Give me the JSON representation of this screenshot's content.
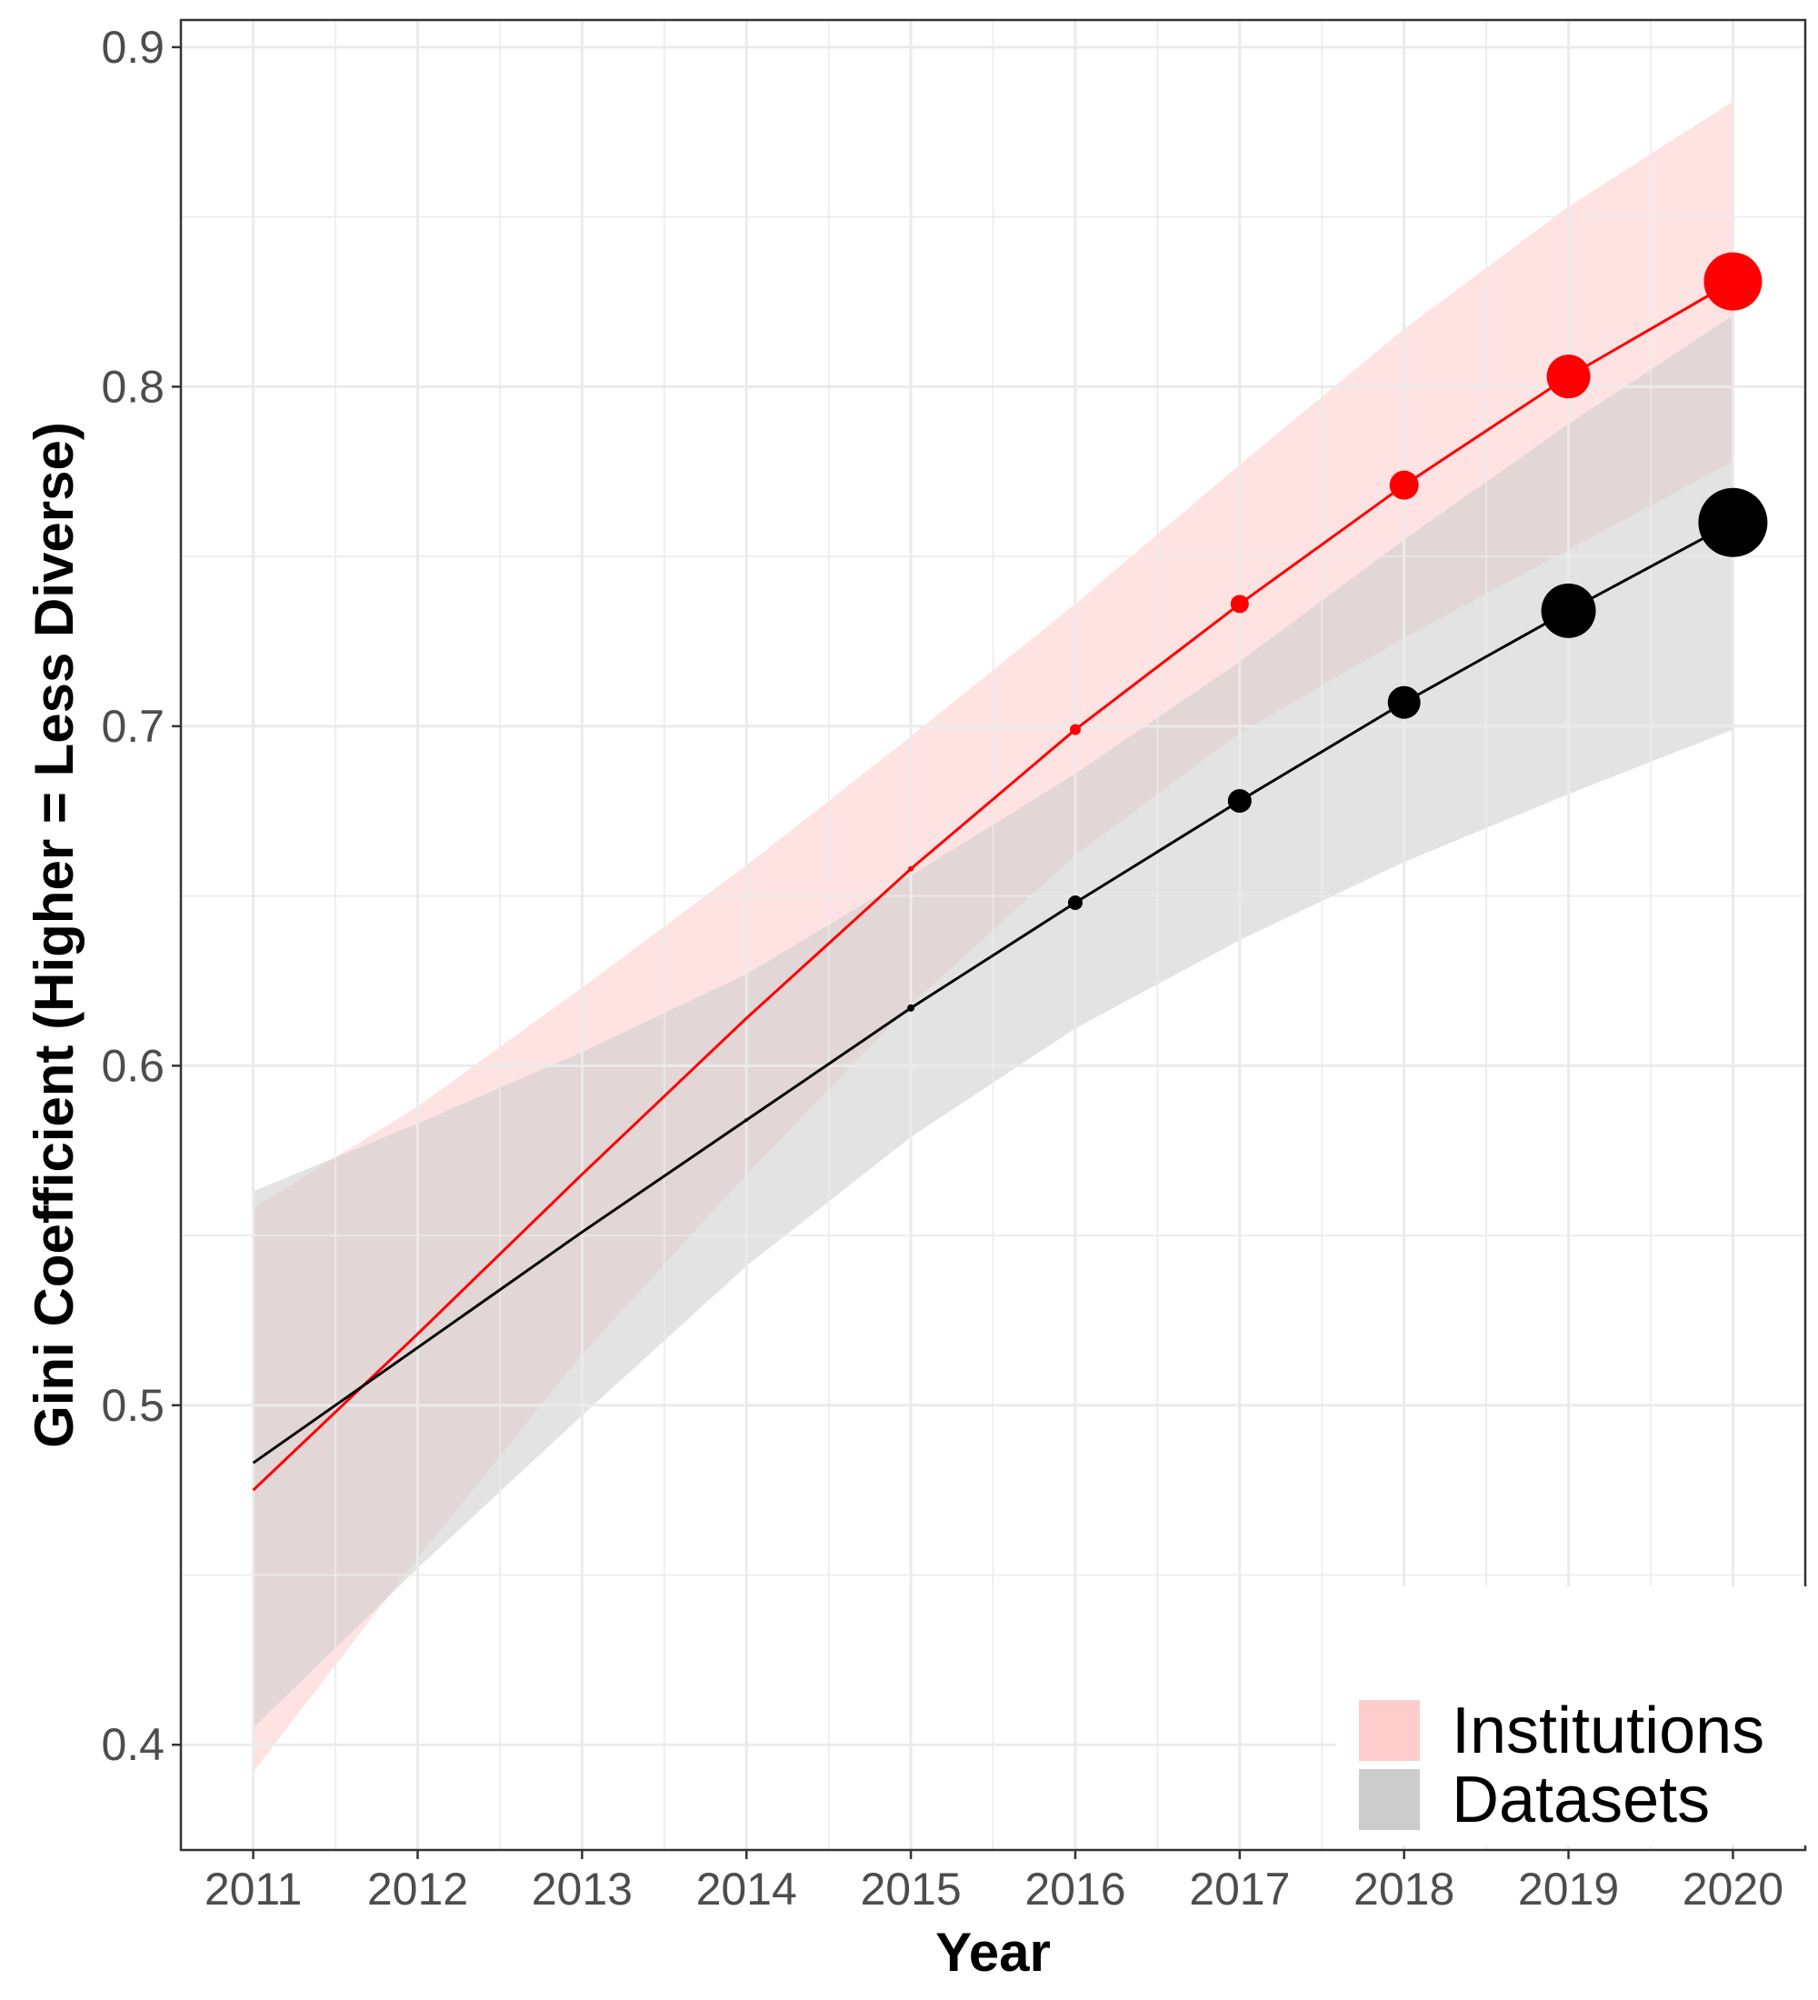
{
  "chart_data": {
    "type": "line",
    "title": "",
    "xlabel": "Year",
    "ylabel": "Gini Coefficient (Higher = Less Diverse)",
    "x": [
      2011,
      2012,
      2013,
      2014,
      2015,
      2016,
      2017,
      2018,
      2019,
      2020
    ],
    "xlim": [
      2010.56,
      2020.44
    ],
    "ylim": [
      0.369,
      0.908
    ],
    "y_ticks": [
      0.4,
      0.5,
      0.6,
      0.7,
      0.8,
      0.9
    ],
    "y_tick_labels": [
      "0.4",
      "0.5",
      "0.6",
      "0.7",
      "0.8",
      "0.9"
    ],
    "x_tick_labels": [
      "2011",
      "2012",
      "2013",
      "2014",
      "2015",
      "2016",
      "2017",
      "2018",
      "2019",
      "2020"
    ],
    "grid": true,
    "legend_position": "bottom-right",
    "series": [
      {
        "name": "Institutions",
        "color": "#ff0000",
        "band_color": "#ffcccc",
        "values": [
          0.475,
          0.521,
          0.568,
          0.614,
          0.658,
          0.699,
          0.736,
          0.771,
          0.803,
          0.831
        ],
        "lower": [
          0.392,
          0.455,
          0.515,
          0.568,
          0.618,
          0.662,
          0.698,
          0.726,
          0.752,
          0.778
        ],
        "upper": [
          0.558,
          0.588,
          0.623,
          0.659,
          0.697,
          0.736,
          0.777,
          0.817,
          0.853,
          0.884
        ],
        "point_sizes": [
          0,
          0,
          0,
          0,
          3,
          6,
          10,
          16,
          24,
          32
        ]
      },
      {
        "name": "Datasets",
        "color": "#000000",
        "band_color": "#cccccc",
        "values": [
          0.483,
          0.517,
          0.551,
          0.584,
          0.617,
          0.648,
          0.678,
          0.707,
          0.734,
          0.76
        ],
        "lower": [
          0.405,
          0.452,
          0.497,
          0.541,
          0.579,
          0.611,
          0.637,
          0.66,
          0.68,
          0.699
        ],
        "upper": [
          0.563,
          0.583,
          0.604,
          0.627,
          0.656,
          0.686,
          0.719,
          0.755,
          0.789,
          0.821
        ],
        "point_sizes": [
          0,
          0,
          0,
          2,
          4,
          8,
          13,
          18,
          30,
          38
        ]
      }
    ]
  }
}
